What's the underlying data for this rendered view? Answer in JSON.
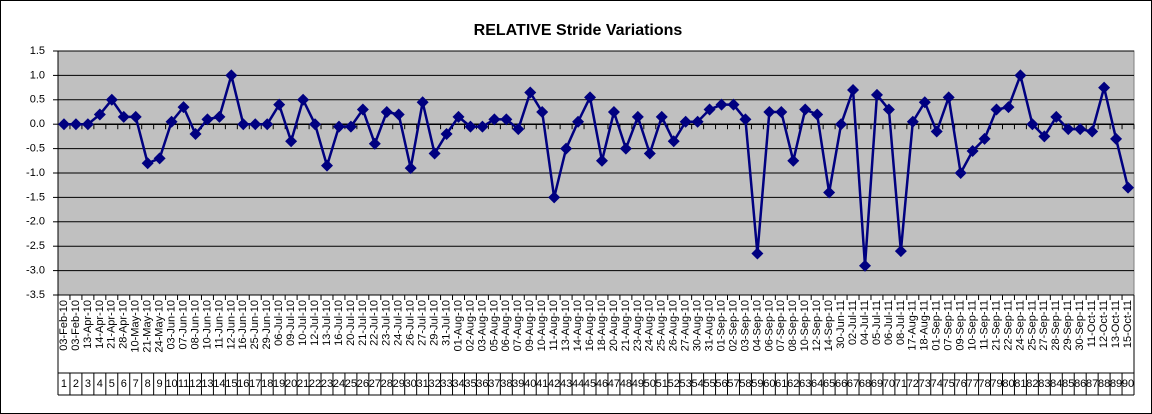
{
  "chart_data": {
    "type": "line",
    "title": "RELATIVE Stride Variations",
    "categories": [
      "03-Feb-10",
      "03-Feb-10",
      "13-Apr-10",
      "14-Apr-10",
      "21-Apr-10",
      "28-Apr-10",
      "10-May-10",
      "21-May-10",
      "24-May-10",
      "03-Jun-10",
      "07-Jun-10",
      "08-Jun-10",
      "10-Jun-10",
      "11-Jun-10",
      "12-Jun-10",
      "16-Jun-10",
      "25-Jun-10",
      "29-Jun-10",
      "06-Jul-10",
      "09-Jul-10",
      "10-Jul-10",
      "12-Jul-10",
      "13-Jul-10",
      "16-Jul-10",
      "20-Jul-10",
      "21-Jul-10",
      "22-Jul-10",
      "23-Jul-10",
      "24-Jul-10",
      "26-Jul-10",
      "27-Jul-10",
      "29-Jul-10",
      "31-Jul-10",
      "01-Aug-10",
      "02-Aug-10",
      "03-Aug-10",
      "05-Aug-10",
      "06-Aug-10",
      "07-Aug-10",
      "09-Aug-10",
      "10-Aug-10",
      "11-Aug-10",
      "13-Aug-10",
      "14-Aug-10",
      "16-Aug-10",
      "18-Aug-10",
      "20-Aug-10",
      "21-Aug-10",
      "23-Aug-10",
      "24-Aug-10",
      "25-Aug-10",
      "26-Aug-10",
      "27-Aug-10",
      "30-Aug-10",
      "31-Aug-10",
      "01-Sep-10",
      "02-Sep-10",
      "03-Sep-10",
      "04-Sep-10",
      "06-Sep-10",
      "07-Sep-10",
      "08-Sep-10",
      "10-Sep-10",
      "12-Sep-10",
      "14-Sep-10",
      "30-Jun-11",
      "02-Jul-11",
      "04-Jul-11",
      "05-Jul-11",
      "06-Jul-11",
      "08-Jul-11",
      "17-Aug-11",
      "18-Aug-11",
      "01-Sep-11",
      "07-Sep-11",
      "09-Sep-11",
      "10-Sep-11",
      "11-Sep-11",
      "21-Sep-11",
      "22-Sep-11",
      "24-Sep-11",
      "25-Sep-11",
      "27-Sep-11",
      "28-Sep-11",
      "29-Sep-11",
      "30-Sep-11",
      "11-Oct-11",
      "12-Oct-11",
      "13-Oct-11",
      "15-Oct-11"
    ],
    "category_numbers": [
      1,
      2,
      3,
      4,
      5,
      6,
      7,
      8,
      9,
      10,
      11,
      12,
      13,
      14,
      15,
      16,
      17,
      18,
      19,
      20,
      21,
      22,
      23,
      24,
      25,
      26,
      27,
      28,
      29,
      30,
      31,
      32,
      33,
      34,
      35,
      36,
      37,
      38,
      39,
      40,
      41,
      42,
      43,
      44,
      45,
      46,
      47,
      48,
      49,
      50,
      51,
      52,
      53,
      54,
      55,
      56,
      57,
      58,
      59,
      60,
      61,
      62,
      63,
      64,
      65,
      66,
      67,
      68,
      69,
      70,
      71,
      72,
      73,
      74,
      75,
      76,
      77,
      78,
      79,
      80,
      81,
      82,
      83,
      84,
      85,
      86,
      87,
      88,
      89,
      90
    ],
    "series": [
      {
        "color": "#000080",
        "values": [
          0,
          0,
          0,
          0.2,
          0.5,
          0.15,
          0.15,
          -0.8,
          -0.7,
          0.05,
          0.35,
          -0.2,
          0.1,
          0.15,
          1.0,
          0,
          0,
          0,
          0.4,
          -0.35,
          0.5,
          0,
          -0.85,
          -0.05,
          -0.05,
          0.3,
          -0.4,
          0.25,
          0.2,
          -0.9,
          0.45,
          -0.6,
          -0.2,
          0.15,
          -0.05,
          -0.05,
          0.1,
          0.1,
          -0.1,
          0.65,
          0.25,
          -1.5,
          -0.5,
          0.05,
          0.55,
          -0.75,
          0.25,
          -0.5,
          0.15,
          -0.6,
          0.15,
          -0.35,
          0.05,
          0.05,
          0.3,
          0.4,
          0.4,
          0.1,
          -2.65,
          0.25,
          0.25,
          -0.75,
          0.3,
          0.2,
          -1.4,
          0,
          0.7,
          -2.9,
          0.6,
          0.3,
          -2.6,
          0.05,
          0.45,
          -0.15,
          0.55,
          -1.0,
          -0.55,
          -0.3,
          0.3,
          0.35,
          1.0,
          0,
          -0.25,
          0.15,
          -0.1,
          -0.1,
          -0.15,
          0.75,
          -0.3,
          -1.3
        ]
      }
    ],
    "ylim": [
      -3.5,
      1.5
    ],
    "yticks": [
      1.5,
      {
        "value": 1.0,
        "label": "1.0"
      },
      0.5,
      {
        "value": 0.0,
        "label": "0.0"
      },
      -0.5,
      {
        "value": -1.0,
        "label": "-1.0"
      },
      -1.5,
      {
        "value": -2.0,
        "label": "-2.0"
      },
      -2.5,
      {
        "value": -3.0,
        "label": "-3.0"
      },
      -3.5
    ],
    "grid": true,
    "plot_background": "#c0c0c0"
  }
}
